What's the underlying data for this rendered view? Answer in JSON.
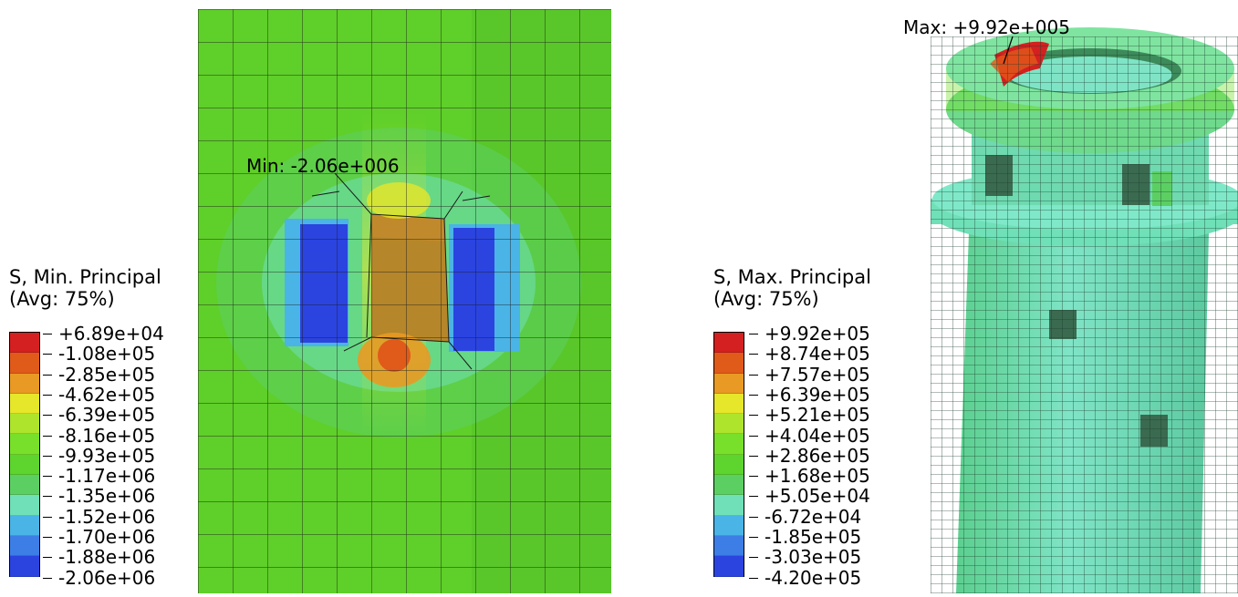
{
  "left_legend": {
    "title_line1": "S, Min. Principal",
    "title_line2": "(Avg: 75%)",
    "labels": [
      "+6.89e+04",
      "-1.08e+05",
      "-2.85e+05",
      "-4.62e+05",
      "-6.39e+05",
      "-8.16e+05",
      "-9.93e+05",
      "-1.17e+06",
      "-1.35e+06",
      "-1.52e+06",
      "-1.70e+06",
      "-1.88e+06",
      "-2.06e+06"
    ]
  },
  "right_legend": {
    "title_line1": "S, Max. Principal",
    "title_line2": "(Avg: 75%)",
    "labels": [
      "+9.92e+05",
      "+8.74e+05",
      "+7.57e+05",
      "+6.39e+05",
      "+5.21e+05",
      "+4.04e+05",
      "+2.86e+05",
      "+1.68e+05",
      "+5.05e+04",
      "-6.72e+04",
      "-1.85e+05",
      "-3.03e+05",
      "-4.20e+05"
    ]
  },
  "colormap": [
    "#d42020",
    "#e05a1a",
    "#e89a24",
    "#e6e62a",
    "#aee42b",
    "#78e02a",
    "#5ed42e",
    "#5ccf63",
    "#6fe0b8",
    "#4ab4e6",
    "#3d7ee6",
    "#2b44e0",
    "#2020e0"
  ],
  "annotations": {
    "min_label": "Min: -2.06e+006",
    "max_label": "Max: +9.92e+005"
  }
}
